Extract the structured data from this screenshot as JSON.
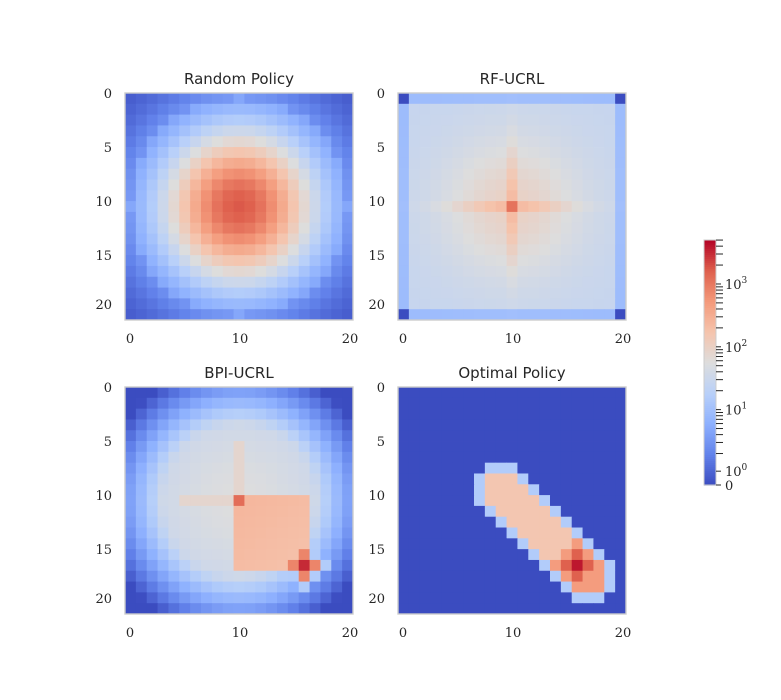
{
  "chart_data": {
    "type": "heatmap",
    "grid_size": 21,
    "colormap": "coolwarm",
    "color_scale": "symlog",
    "xlim": [
      0,
      20
    ],
    "ylim": [
      20,
      0
    ],
    "x_ticks": [
      "0",
      "10",
      "20"
    ],
    "y_ticks": [
      "0",
      "5",
      "10",
      "15",
      "20"
    ],
    "colorbar": {
      "ticks": [
        {
          "base": "0",
          "exp": ""
        },
        {
          "base": "10",
          "exp": "0"
        },
        {
          "base": "10",
          "exp": "1"
        },
        {
          "base": "10",
          "exp": "2"
        },
        {
          "base": "10",
          "exp": "3"
        }
      ],
      "max_log10": 3.7
    },
    "panels": [
      {
        "title": "Random Policy",
        "model": {
          "kind": "radial",
          "center": [
            10,
            10
          ],
          "peak_log10": 3.3,
          "scale": 5.5,
          "power": 2,
          "floor": -0.05
        }
      },
      {
        "title": "RF-UCRL",
        "model": {
          "kind": "uniform",
          "center": [
            10,
            10
          ],
          "base_log10": 1.45,
          "spread": 0.05,
          "cross": 0.35,
          "spike": 0.7,
          "edge_drop": 0.5,
          "corner_low": true
        }
      },
      {
        "title": "BPI-UCRL",
        "model": {
          "kind": "biased",
          "center": [
            10,
            10
          ],
          "base_log10": 1.4,
          "block": [
            10,
            16,
            10,
            16
          ],
          "block_log10": 2.4,
          "goal": [
            16,
            16
          ],
          "goal_log10": 3.5
        }
      },
      {
        "title": "Optimal Policy",
        "model": {
          "kind": "path",
          "from": [
            10,
            10
          ],
          "to": [
            16,
            16
          ],
          "width": 2.2,
          "peak_log10": 3.4,
          "base_log10": 2.2
        }
      }
    ]
  }
}
